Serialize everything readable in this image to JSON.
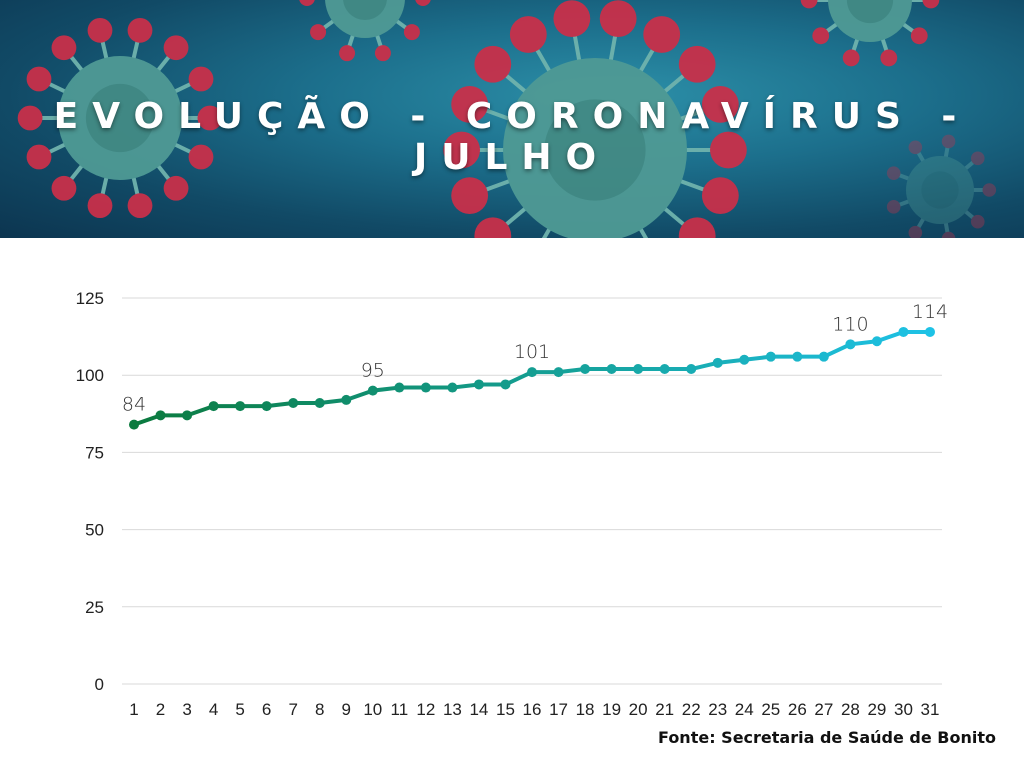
{
  "title": "EVOLUÇÃO - CORONAVÍRUS - JULHO",
  "source": "Fonte: Secretaria de Saúde de Bonito",
  "colors": {
    "start": "#0b7a3e",
    "end": "#1ec2e6",
    "grid": "#d9d9d9",
    "label": "#333333"
  },
  "chart_data": {
    "type": "line",
    "title": "EVOLUÇÃO - CORONAVÍRUS - JULHO",
    "xlabel": "",
    "ylabel": "",
    "categories": [
      "1",
      "2",
      "3",
      "4",
      "5",
      "6",
      "7",
      "8",
      "9",
      "10",
      "11",
      "12",
      "13",
      "14",
      "15",
      "16",
      "17",
      "18",
      "19",
      "20",
      "21",
      "22",
      "23",
      "24",
      "25",
      "26",
      "27",
      "28",
      "29",
      "30",
      "31"
    ],
    "values": [
      84,
      87,
      87,
      90,
      90,
      90,
      91,
      91,
      92,
      95,
      96,
      96,
      96,
      97,
      97,
      101,
      101,
      102,
      102,
      102,
      102,
      102,
      104,
      105,
      106,
      106,
      106,
      110,
      111,
      114,
      114
    ],
    "yticks": [
      0,
      25,
      50,
      75,
      100,
      125
    ],
    "ylim": [
      0,
      125
    ],
    "grid": true,
    "legend": "none",
    "annotations": [
      {
        "index": 0,
        "label": "84"
      },
      {
        "index": 9,
        "label": "95"
      },
      {
        "index": 15,
        "label": "101"
      },
      {
        "index": 27,
        "label": "110"
      },
      {
        "index": 30,
        "label": "114"
      }
    ]
  }
}
